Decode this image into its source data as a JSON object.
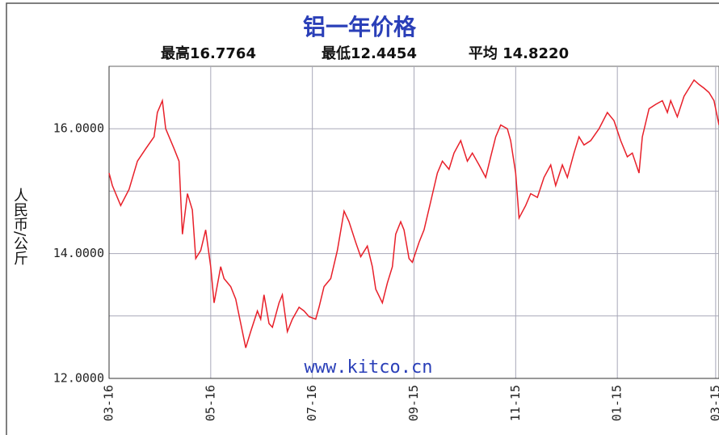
{
  "chart_data": {
    "type": "line",
    "title": "铝一年价格",
    "stats": [
      "最高16.7764",
      "最低12.4454",
      "平均 14.8220"
    ],
    "ylabel": "人民币/公斤",
    "watermark": "www.kitco.cn",
    "x": [
      0,
      2,
      7,
      12,
      17,
      22,
      27,
      29,
      32,
      34,
      39,
      42,
      44,
      47,
      50,
      52,
      55,
      58,
      61,
      63,
      67,
      69,
      73,
      76,
      79,
      82,
      85,
      89,
      91,
      93,
      96,
      98,
      102,
      104,
      107,
      110,
      114,
      117,
      120,
      124,
      126,
      129,
      133,
      137,
      141,
      144,
      148,
      151,
      155,
      158,
      160,
      164,
      167,
      170,
      172,
      175,
      177,
      180,
      182,
      186,
      189,
      193,
      197,
      200,
      204,
      207,
      211,
      215,
      218,
      222,
      226,
      229,
      232,
      235,
      239,
      241,
      244,
      246,
      250,
      253,
      257,
      261,
      265,
      268,
      272,
      275,
      279,
      282,
      285,
      289,
      294,
      299,
      303,
      307,
      311,
      314,
      318,
      320,
      324,
      328,
      332,
      335,
      337,
      341,
      345,
      348,
      351,
      354,
      357,
      360,
      363,
      366
    ],
    "series": [
      {
        "color": "#e8202a",
        "values": [
          15.29,
          15.09,
          14.77,
          15.03,
          15.48,
          15.68,
          15.87,
          16.26,
          16.45,
          16.0,
          15.68,
          15.48,
          14.31,
          14.96,
          14.7,
          13.92,
          14.05,
          14.38,
          13.79,
          13.21,
          13.79,
          13.6,
          13.47,
          13.27,
          12.88,
          12.49,
          12.75,
          13.08,
          12.95,
          13.34,
          12.88,
          12.82,
          13.21,
          13.34,
          12.75,
          12.95,
          13.14,
          13.08,
          12.99,
          12.95,
          13.14,
          13.47,
          13.6,
          14.05,
          14.68,
          14.51,
          14.18,
          13.95,
          14.12,
          13.79,
          13.43,
          13.21,
          13.53,
          13.79,
          14.31,
          14.51,
          14.38,
          13.92,
          13.86,
          14.18,
          14.38,
          14.83,
          15.29,
          15.48,
          15.35,
          15.61,
          15.81,
          15.48,
          15.61,
          15.42,
          15.22,
          15.55,
          15.87,
          16.06,
          16.0,
          15.81,
          15.29,
          14.57,
          14.77,
          14.96,
          14.9,
          15.22,
          15.42,
          15.09,
          15.42,
          15.22,
          15.61,
          15.87,
          15.74,
          15.81,
          16.0,
          16.26,
          16.13,
          15.81,
          15.55,
          15.61,
          15.29,
          15.87,
          16.32,
          16.39,
          16.45,
          16.26,
          16.45,
          16.19,
          16.52,
          16.65,
          16.78,
          16.71,
          16.65,
          16.58,
          16.45,
          16.06
        ]
      }
    ],
    "xlim": [
      0,
      366
    ],
    "xticks": [
      {
        "value": 0,
        "label": "03-16"
      },
      {
        "value": 61,
        "label": "05-16"
      },
      {
        "value": 122,
        "label": "07-16"
      },
      {
        "value": 183,
        "label": "09-15"
      },
      {
        "value": 244,
        "label": "11-15"
      },
      {
        "value": 305,
        "label": "01-15"
      },
      {
        "value": 364,
        "label": "03-15"
      }
    ],
    "ylim": [
      12,
      17
    ],
    "yticks": [
      {
        "value": 12,
        "label": "12.0000"
      },
      {
        "value": 14,
        "label": "14.0000"
      },
      {
        "value": 16,
        "label": "16.0000"
      }
    ],
    "ygrid": [
      13,
      15
    ],
    "grid": true
  }
}
